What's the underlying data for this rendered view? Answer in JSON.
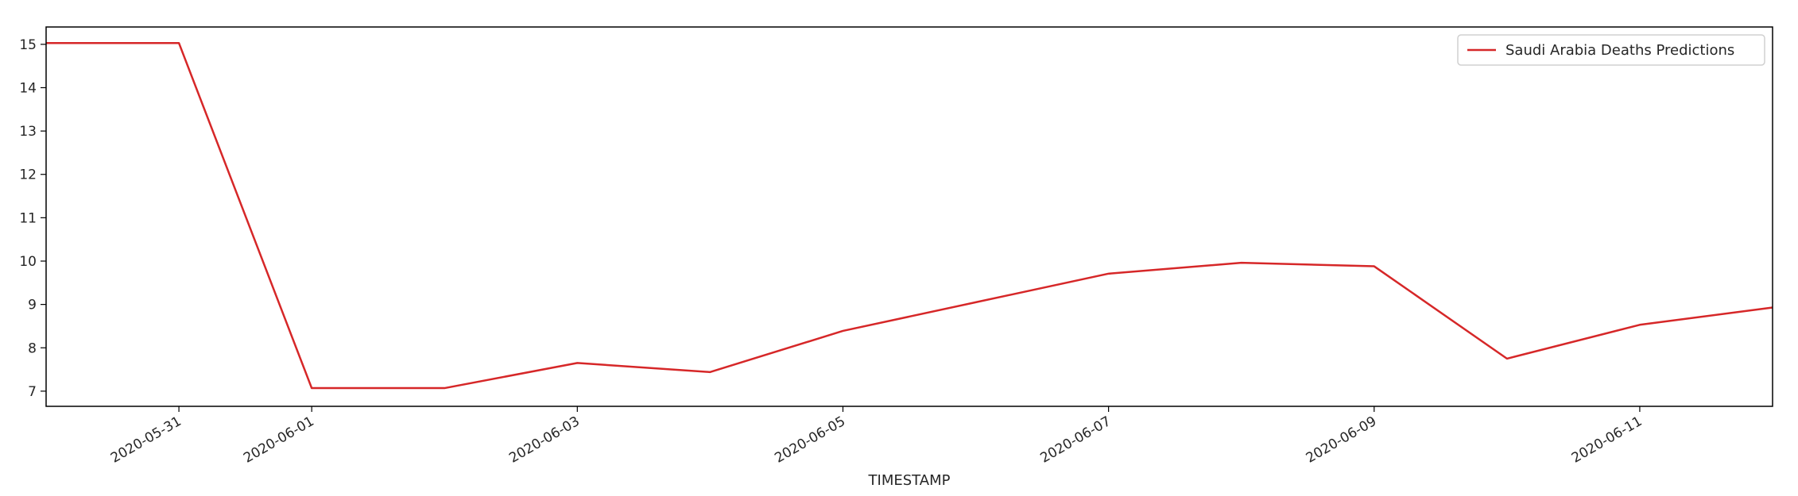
{
  "chart_data": {
    "type": "line",
    "title": "",
    "xlabel": "TIMESTAMP",
    "ylabel": "",
    "x": [
      "2020-05-30",
      "2020-05-31",
      "2020-06-01",
      "2020-06-02",
      "2020-06-03",
      "2020-06-04",
      "2020-06-05",
      "2020-06-06",
      "2020-06-07",
      "2020-06-08",
      "2020-06-09",
      "2020-06-10",
      "2020-06-11",
      "2020-06-12"
    ],
    "series": [
      {
        "name": "Saudi Arabia Deaths Predictions",
        "color": "#d62728",
        "values": [
          15.03,
          15.03,
          7.07,
          7.07,
          7.65,
          7.44,
          8.39,
          9.05,
          9.71,
          9.96,
          9.88,
          7.75,
          8.53,
          8.93
        ]
      }
    ],
    "xlim": [
      "2020-05-30",
      "2020-06-12"
    ],
    "ylim": [
      6.65,
      15.4
    ],
    "x_ticks": [
      "2020-05-31",
      "2020-06-01",
      "2020-06-03",
      "2020-06-05",
      "2020-06-07",
      "2020-06-09",
      "2020-06-11"
    ],
    "y_ticks": [
      7,
      8,
      9,
      10,
      11,
      12,
      13,
      14,
      15
    ],
    "grid": false,
    "legend_position": "top-right"
  }
}
